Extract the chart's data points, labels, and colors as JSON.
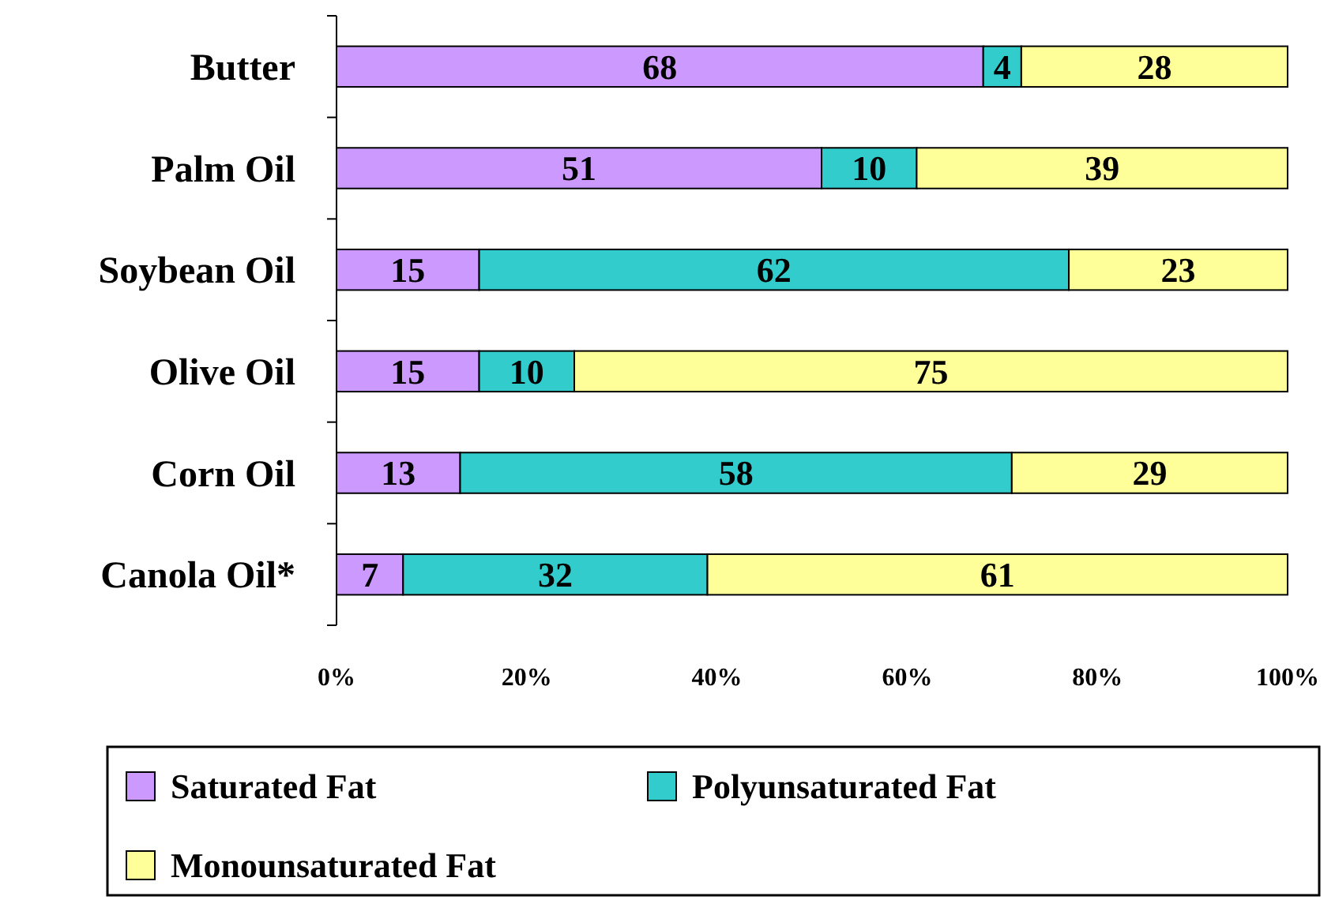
{
  "chart_data": {
    "type": "bar",
    "orientation": "horizontal",
    "stacked": true,
    "categories": [
      "Butter",
      "Palm Oil",
      "Soybean Oil",
      "Olive Oil",
      "Corn Oil",
      "Canola Oil*"
    ],
    "series": [
      {
        "name": "Saturated Fat",
        "color": "#cc99ff",
        "values": [
          68,
          51,
          15,
          15,
          13,
          7
        ]
      },
      {
        "name": "Polyunsaturated Fat",
        "color": "#33cccc",
        "values": [
          4,
          10,
          62,
          10,
          58,
          32
        ]
      },
      {
        "name": "Monounsaturated Fat",
        "color": "#ffff99",
        "values": [
          28,
          39,
          23,
          75,
          29,
          61
        ]
      }
    ],
    "xlim": [
      0,
      100
    ],
    "xticks": [
      {
        "value": 0,
        "label": "0%"
      },
      {
        "value": 20,
        "label": "20%"
      },
      {
        "value": 40,
        "label": "40%"
      },
      {
        "value": 60,
        "label": "60%"
      },
      {
        "value": 80,
        "label": "80%"
      },
      {
        "value": 100,
        "label": "100%"
      }
    ],
    "data_labels": true,
    "legend": "bottom",
    "grid": false
  }
}
